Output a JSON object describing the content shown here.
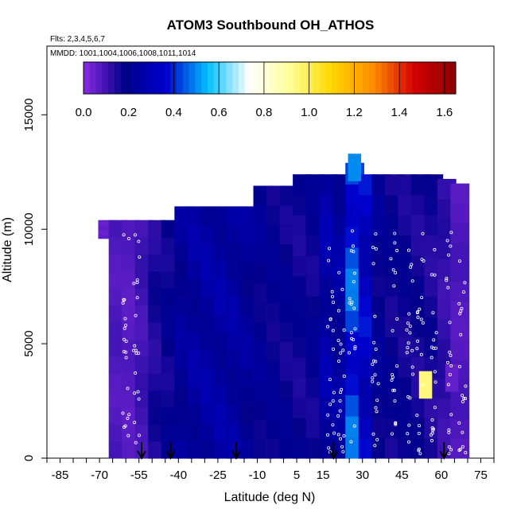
{
  "chart_data": {
    "type": "heatmap",
    "title": "ATOM3 Southbound OH_ATHOS",
    "flights_label": "Flts: 2,3,4,5,6,7",
    "dates_label": "MMDD: 1001,1004,1006,1008,1011,1014",
    "xlabel": "Latitude (deg N)",
    "ylabel": "Altitude (m)",
    "xlim": [
      -90,
      80
    ],
    "ylim": [
      0,
      18000
    ],
    "x_ticks": [
      -85,
      -70,
      -55,
      -40,
      -25,
      -10,
      5,
      15,
      30,
      45,
      60,
      75
    ],
    "y_ticks": [
      0,
      5000,
      10000,
      15000
    ],
    "colorbar": {
      "min": 0.0,
      "max": 1.65,
      "ticks": [
        0.0,
        0.2,
        0.4,
        0.6,
        0.8,
        1.0,
        1.2,
        1.4,
        1.6
      ],
      "tick_labels": [
        "0.0",
        "0.2",
        "0.4",
        "0.6",
        "0.8",
        "1.0",
        "1.2",
        "1.4",
        "1.6"
      ],
      "palette": [
        "#8a2be2",
        "#00008b",
        "#0000cd",
        "#00bfff",
        "#ffffff",
        "#ffff99",
        "#ffd700",
        "#ff8c00",
        "#d40000",
        "#8b0000"
      ]
    },
    "profile_markers_lat": [
      -54,
      -43,
      -18,
      19,
      61
    ],
    "columns": [
      {
        "x": -67,
        "top": 10400,
        "bottom": 9600,
        "v": 0.05
      },
      {
        "x": -63,
        "top": 10400,
        "bottom": 0,
        "v": 0.08
      },
      {
        "x": -58,
        "top": 10400,
        "bottom": 0,
        "v": 0.07
      },
      {
        "x": -53,
        "top": 10400,
        "bottom": 0,
        "v": 0.1
      },
      {
        "x": -48,
        "top": 10400,
        "bottom": 0,
        "v": 0.15
      },
      {
        "x": -43,
        "top": 10400,
        "bottom": 0,
        "v": 0.18
      },
      {
        "x": -38,
        "top": 11000,
        "bottom": 0,
        "v": 0.22
      },
      {
        "x": -33,
        "top": 11000,
        "bottom": 0,
        "v": 0.24
      },
      {
        "x": -28,
        "top": 11000,
        "bottom": 0,
        "v": 0.25
      },
      {
        "x": -23,
        "top": 11000,
        "bottom": 0,
        "v": 0.25
      },
      {
        "x": -18,
        "top": 11000,
        "bottom": 0,
        "v": 0.24
      },
      {
        "x": -13,
        "top": 11000,
        "bottom": 0,
        "v": 0.22
      },
      {
        "x": -8,
        "top": 11900,
        "bottom": 0,
        "v": 0.2
      },
      {
        "x": -3,
        "top": 11900,
        "bottom": 0,
        "v": 0.19
      },
      {
        "x": 2,
        "top": 11900,
        "bottom": 0,
        "v": 0.18
      },
      {
        "x": 7,
        "top": 12400,
        "bottom": 0,
        "v": 0.17
      },
      {
        "x": 12,
        "top": 12400,
        "bottom": 0,
        "v": 0.18
      },
      {
        "x": 17,
        "top": 12400,
        "bottom": 0,
        "v": 0.26
      },
      {
        "x": 22,
        "top": 12400,
        "bottom": 0,
        "v": 0.24
      },
      {
        "x": 27,
        "top": 12900,
        "bottom": 0,
        "v": 0.42
      },
      {
        "x": 32,
        "top": 12400,
        "bottom": 0,
        "v": 0.33
      },
      {
        "x": 37,
        "top": 12400,
        "bottom": 0,
        "v": 0.2
      },
      {
        "x": 42,
        "top": 12400,
        "bottom": 0,
        "v": 0.18
      },
      {
        "x": 47,
        "top": 12400,
        "bottom": 0,
        "v": 0.17
      },
      {
        "x": 52,
        "top": 12400,
        "bottom": 0,
        "v": 0.16
      },
      {
        "x": 57,
        "top": 12400,
        "bottom": 0,
        "v": 0.15
      },
      {
        "x": 62,
        "top": 12200,
        "bottom": 0,
        "v": 0.12
      },
      {
        "x": 67,
        "top": 12000,
        "bottom": 0,
        "v": 0.08
      }
    ],
    "hotspots": [
      {
        "lat": 54,
        "alt": 3200,
        "v": 0.95
      },
      {
        "lat": 27,
        "alt": 12700,
        "v": 0.5
      },
      {
        "lat": 64,
        "alt": 3500,
        "v": 0.05
      }
    ]
  }
}
